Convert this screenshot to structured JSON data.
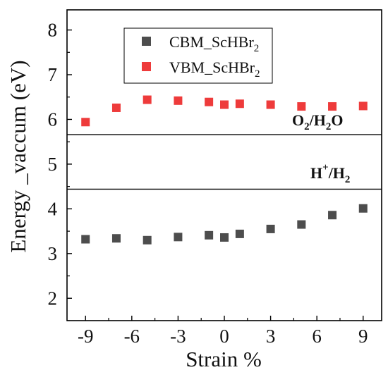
{
  "chart_data": {
    "type": "scatter",
    "xlabel": "Strain %",
    "ylabel": "Energy _vaccum (eV)",
    "xlim": [
      -10.2,
      10.2
    ],
    "ylim": [
      1.5,
      8.45
    ],
    "x_ticks": [
      -9,
      -6,
      -3,
      0,
      3,
      6,
      9
    ],
    "x_tick_labels": [
      "-9",
      "-6",
      "-3",
      "0",
      "3",
      "6",
      "9"
    ],
    "y_ticks": [
      2,
      3,
      4,
      5,
      6,
      7,
      8
    ],
    "y_tick_labels": [
      "2",
      "3",
      "4",
      "5",
      "6",
      "7",
      "8"
    ],
    "grid": false,
    "legend_position": "top-left",
    "series": [
      {
        "name": "CBM_ScHBr2",
        "legend_main": "CBM_ScHBr",
        "legend_sub": "2",
        "color": "#4d4d4d",
        "marker": "square",
        "x": [
          -9,
          -7,
          -5,
          -3,
          -1,
          0,
          1,
          3,
          5,
          7,
          9
        ],
        "y": [
          3.32,
          3.34,
          3.3,
          3.37,
          3.41,
          3.36,
          3.44,
          3.55,
          3.65,
          3.86,
          4.01
        ]
      },
      {
        "name": "VBM_ScHBr2",
        "legend_main": "VBM_ScHBr",
        "legend_sub": "2",
        "color": "#ee3b3b",
        "marker": "square",
        "x": [
          -9,
          -7,
          -5,
          -3,
          -1,
          0,
          1,
          3,
          5,
          7,
          9
        ],
        "y": [
          5.94,
          6.26,
          6.44,
          6.42,
          6.39,
          6.33,
          6.35,
          6.33,
          6.29,
          6.29,
          6.3
        ]
      }
    ],
    "reference_lines": [
      {
        "y": 5.66,
        "label": "O2/H2O"
      },
      {
        "y": 4.44,
        "label": "H+/H2"
      }
    ],
    "reference_label_parts": {
      "o2": {
        "a": "O",
        "b": "2",
        "c": "/H",
        "d": "2",
        "e": "O"
      },
      "h2": {
        "a": "H",
        "b": "+",
        "c": "/H",
        "d": "2"
      }
    }
  }
}
